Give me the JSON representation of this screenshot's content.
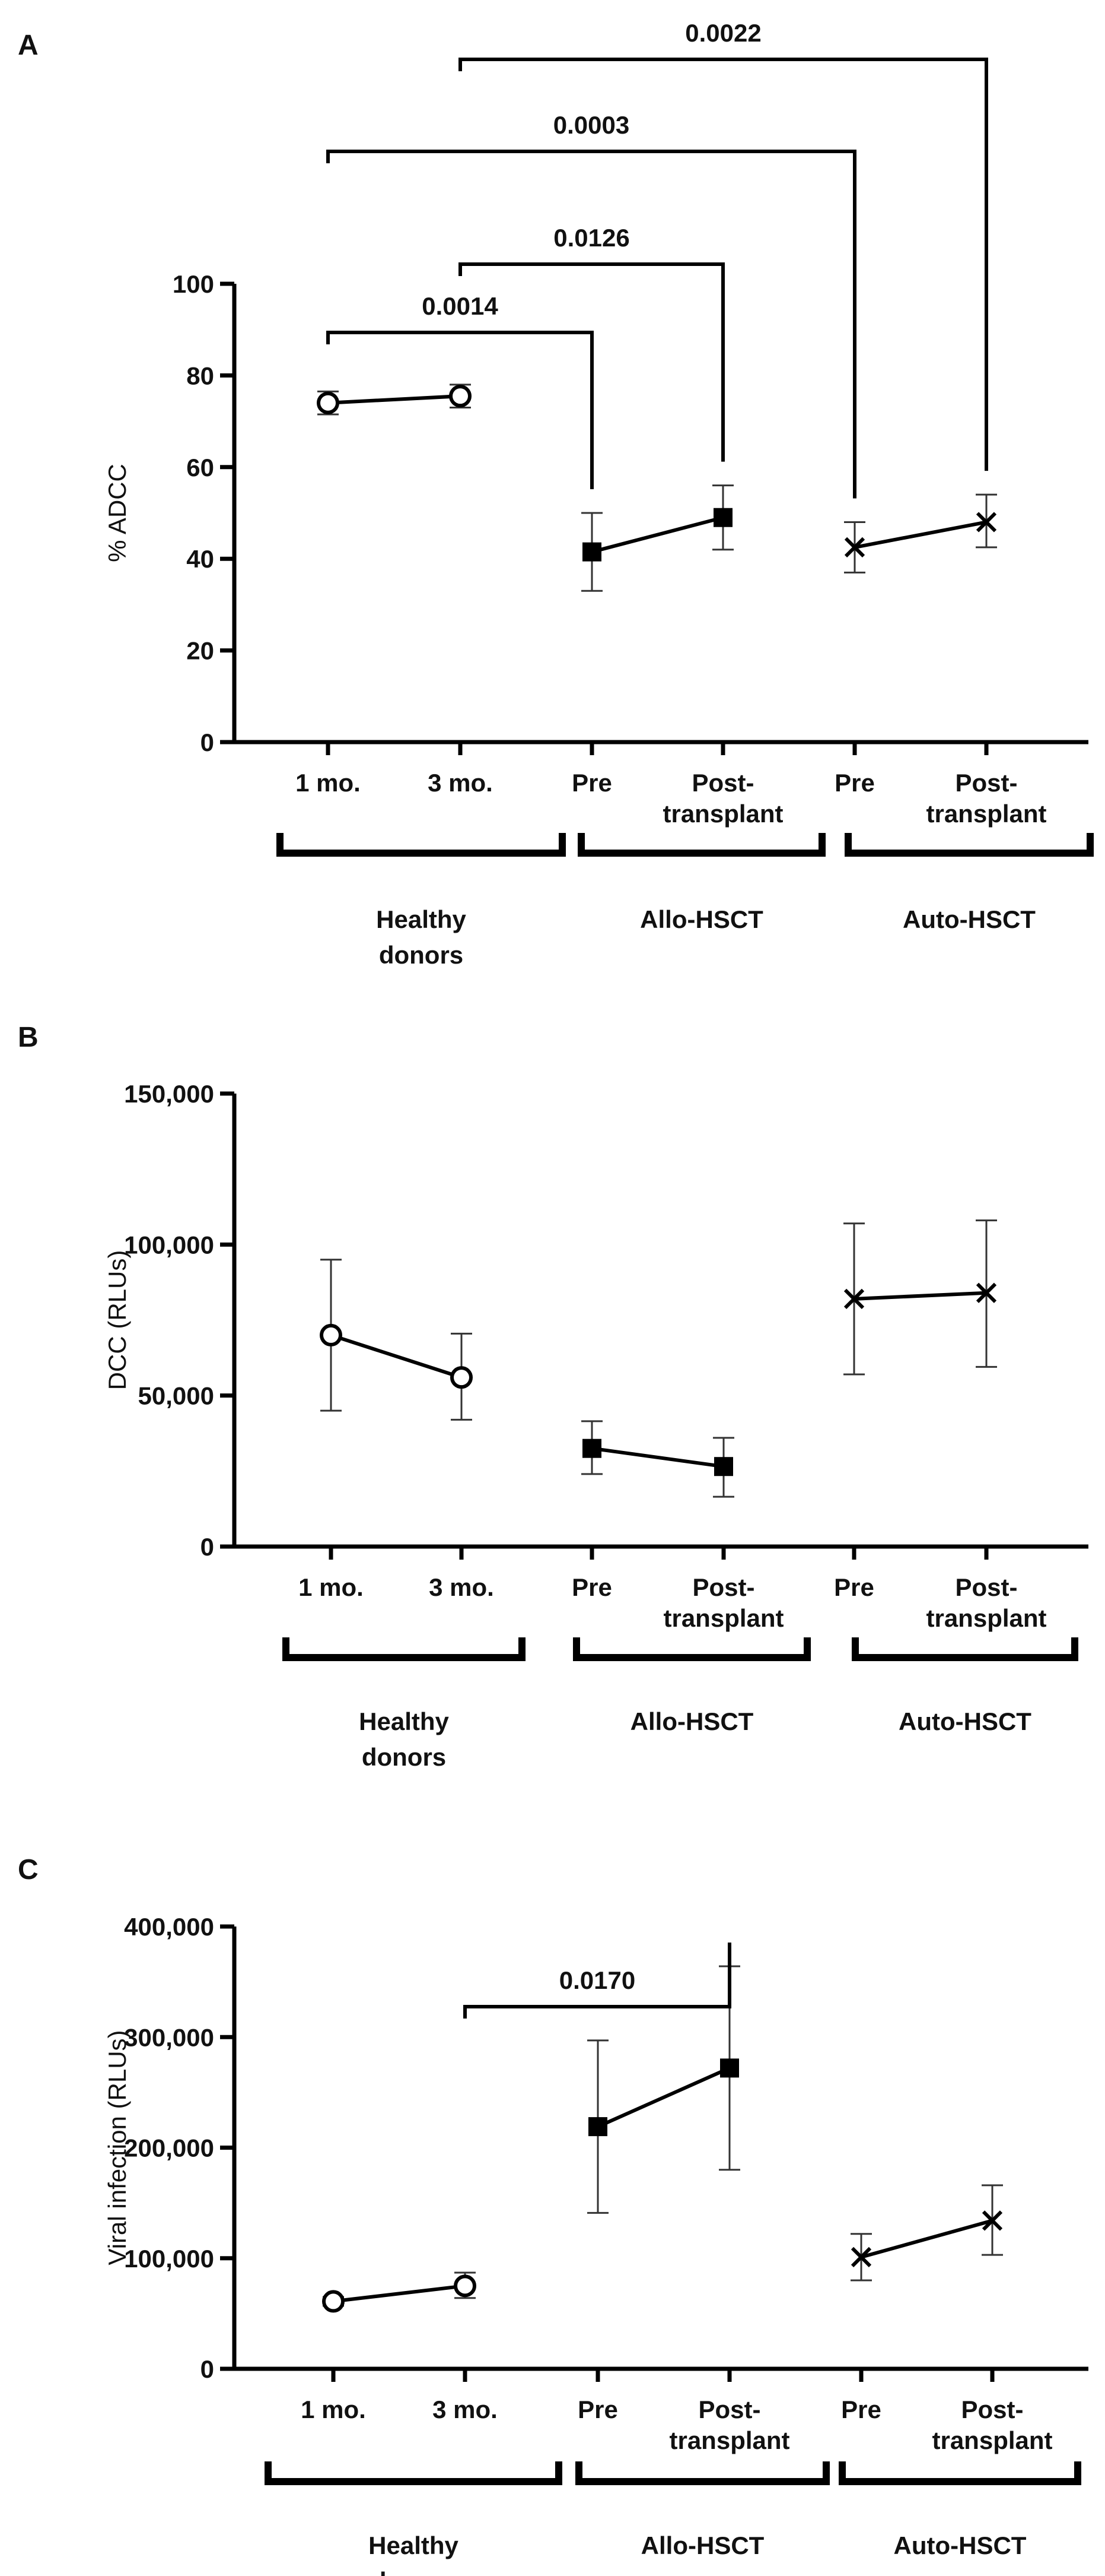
{
  "chart_data": [
    {
      "panel": "A",
      "type": "line",
      "ylabel": "% ADCC",
      "ylim": [
        0,
        100
      ],
      "yticks": [
        0,
        20,
        40,
        60,
        80,
        100
      ],
      "ytick_labels": [
        "0",
        "20",
        "40",
        "60",
        "80",
        "100"
      ],
      "categories": [
        "1 mo.",
        "3 mo.",
        "Pre",
        "Post-transplant",
        "Pre",
        "Post-transplant"
      ],
      "groups": [
        {
          "label": "Healthy donors",
          "categories": [
            0,
            1
          ]
        },
        {
          "label": "Allo-HSCT",
          "categories": [
            2,
            3
          ]
        },
        {
          "label": "Auto-HSCT",
          "categories": [
            4,
            5
          ]
        }
      ],
      "series": [
        {
          "name": "Healthy donors",
          "marker": "open-circle",
          "points": [
            {
              "cat": 0,
              "y": 74,
              "err_low": 71.5,
              "err_high": 76.5
            },
            {
              "cat": 1,
              "y": 75.5,
              "err_low": 73,
              "err_high": 78
            }
          ]
        },
        {
          "name": "Allo-HSCT",
          "marker": "filled-square",
          "points": [
            {
              "cat": 2,
              "y": 41.5,
              "err_low": 33,
              "err_high": 50
            },
            {
              "cat": 3,
              "y": 49,
              "err_low": 42,
              "err_high": 56
            }
          ]
        },
        {
          "name": "Auto-HSCT",
          "marker": "x",
          "points": [
            {
              "cat": 4,
              "y": 42.5,
              "err_low": 37,
              "err_high": 48
            },
            {
              "cat": 5,
              "y": 48,
              "err_low": 42.5,
              "err_high": 54
            }
          ]
        }
      ],
      "comparisons": [
        {
          "from": 0,
          "to": 2,
          "p": "0.0014"
        },
        {
          "from": 1,
          "to": 3,
          "p": "0.0126"
        },
        {
          "from": 0,
          "to": 4,
          "p": "0.0003"
        },
        {
          "from": 1,
          "to": 5,
          "p": "0.0022"
        }
      ]
    },
    {
      "panel": "B",
      "type": "line",
      "ylabel": "DCC (RLUs)",
      "ylim": [
        0,
        150000
      ],
      "yticks": [
        0,
        50000,
        100000,
        150000
      ],
      "ytick_labels": [
        "0",
        "50,000",
        "100,000",
        "150,000"
      ],
      "categories": [
        "1 mo.",
        "3 mo.",
        "Pre",
        "Post-transplant",
        "Pre",
        "Post-transplant"
      ],
      "groups": [
        {
          "label": "Healthy donors",
          "categories": [
            0,
            1
          ]
        },
        {
          "label": "Allo-HSCT",
          "categories": [
            2,
            3
          ]
        },
        {
          "label": "Auto-HSCT",
          "categories": [
            4,
            5
          ]
        }
      ],
      "series": [
        {
          "name": "Healthy donors",
          "marker": "open-circle",
          "points": [
            {
              "cat": 0,
              "y": 70000,
              "err_low": 45000,
              "err_high": 95000
            },
            {
              "cat": 1,
              "y": 56000,
              "err_low": 42000,
              "err_high": 70500
            }
          ]
        },
        {
          "name": "Allo-HSCT",
          "marker": "filled-square",
          "points": [
            {
              "cat": 2,
              "y": 32500,
              "err_low": 24000,
              "err_high": 41500
            },
            {
              "cat": 3,
              "y": 26500,
              "err_low": 16500,
              "err_high": 36000
            }
          ]
        },
        {
          "name": "Auto-HSCT",
          "marker": "x",
          "points": [
            {
              "cat": 4,
              "y": 82000,
              "err_low": 57000,
              "err_high": 107000
            },
            {
              "cat": 5,
              "y": 84000,
              "err_low": 59500,
              "err_high": 108000
            }
          ]
        }
      ],
      "comparisons": []
    },
    {
      "panel": "C",
      "type": "line",
      "ylabel": "Viral infection (RLUs)",
      "ylim": [
        0,
        400000
      ],
      "yticks": [
        0,
        100000,
        200000,
        300000,
        400000
      ],
      "ytick_labels": [
        "0",
        "100,000",
        "200,000",
        "300,000",
        "400,000"
      ],
      "categories": [
        "1 mo.",
        "3 mo.",
        "Pre",
        "Post-transplant",
        "Pre",
        "Post-transplant"
      ],
      "groups": [
        {
          "label": "Healthy donors",
          "categories": [
            0,
            1
          ]
        },
        {
          "label": "Allo-HSCT",
          "categories": [
            2,
            3
          ]
        },
        {
          "label": "Auto-HSCT",
          "categories": [
            4,
            5
          ]
        }
      ],
      "series": [
        {
          "name": "Healthy donors",
          "marker": "open-circle",
          "points": [
            {
              "cat": 0,
              "y": 61000,
              "err_low": 57000,
              "err_high": 65000
            },
            {
              "cat": 1,
              "y": 75000,
              "err_low": 64000,
              "err_high": 87000
            }
          ]
        },
        {
          "name": "Allo-HSCT",
          "marker": "filled-square",
          "points": [
            {
              "cat": 2,
              "y": 219000,
              "err_low": 141000,
              "err_high": 297000
            },
            {
              "cat": 3,
              "y": 272000,
              "err_low": 180000,
              "err_high": 364000
            }
          ]
        },
        {
          "name": "Auto-HSCT",
          "marker": "x",
          "points": [
            {
              "cat": 4,
              "y": 101000,
              "err_low": 80000,
              "err_high": 122000
            },
            {
              "cat": 5,
              "y": 134000,
              "err_low": 103000,
              "err_high": 166000
            }
          ]
        }
      ],
      "comparisons": [
        {
          "from": 1,
          "to": 3,
          "p": "0.0170"
        }
      ]
    }
  ]
}
